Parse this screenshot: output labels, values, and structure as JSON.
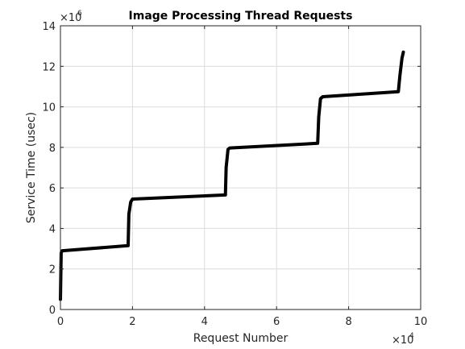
{
  "chart_data": {
    "type": "line",
    "title": "Image Processing Thread Requests",
    "xlabel": "Request Number",
    "ylabel": "Service Time (usec)",
    "xlim": [
      0,
      100000
    ],
    "ylim": [
      0,
      14000000
    ],
    "x_ticks": [
      0,
      20000,
      40000,
      60000,
      80000,
      100000
    ],
    "y_ticks": [
      0,
      2000000,
      4000000,
      6000000,
      8000000,
      10000000,
      12000000,
      14000000
    ],
    "x_tick_labels": [
      "0",
      "2",
      "4",
      "6",
      "8",
      "10"
    ],
    "y_tick_labels": [
      "0",
      "2",
      "4",
      "6",
      "8",
      "10",
      "12",
      "14"
    ],
    "x_multiplier": {
      "base": "×10",
      "exponent": "4"
    },
    "y_multiplier": {
      "base": "×10",
      "exponent": "6"
    },
    "grid": true,
    "line_color": "#000000",
    "series": [
      {
        "x": [
          0,
          200,
          500,
          18800,
          19000,
          19500,
          20000,
          45800,
          46000,
          46500,
          47000,
          71400,
          71700,
          72200,
          72800,
          93800,
          94200,
          94800,
          95200
        ],
        "y": [
          500000,
          2800000,
          2900000,
          3150000,
          4700000,
          5300000,
          5450000,
          5650000,
          7000000,
          7900000,
          7970000,
          8200000,
          9500000,
          10400000,
          10500000,
          10750000,
          11500000,
          12400000,
          12700000
        ]
      }
    ]
  }
}
